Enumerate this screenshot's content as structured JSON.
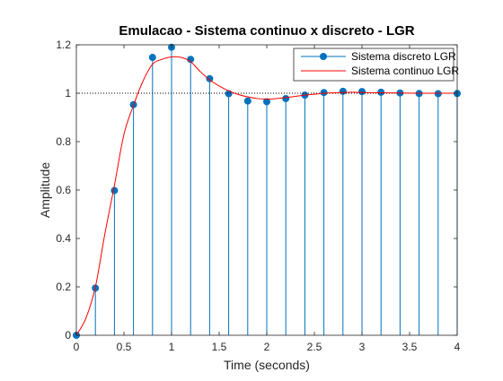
{
  "chart_data": {
    "type": "line",
    "title": "Emulacao - Sistema continuo x discreto - LGR",
    "xlabel": "Time (seconds)",
    "ylabel": "Amplitude",
    "xlim": [
      0,
      4
    ],
    "ylim": [
      0,
      1.2
    ],
    "x_ticks": [
      "0",
      "0.5",
      "1",
      "1.5",
      "2",
      "2.5",
      "3",
      "3.5",
      "4"
    ],
    "y_ticks": [
      "0",
      "0.2",
      "0.4",
      "0.6",
      "0.8",
      "1",
      "1.2"
    ],
    "reference_line": {
      "y": 1,
      "style": "dotted",
      "color": "#000000"
    },
    "legend_position": "top-right",
    "grid": false,
    "series": [
      {
        "name": "Sistema discreto LGR",
        "style": "stem",
        "color": "#0072BD",
        "x": [
          0,
          0.2,
          0.4,
          0.6,
          0.8,
          1.0,
          1.2,
          1.4,
          1.6,
          1.8,
          2.0,
          2.2,
          2.4,
          2.6,
          2.8,
          3.0,
          3.2,
          3.4,
          3.6,
          3.8,
          4.0
        ],
        "values": [
          0,
          0.195,
          0.598,
          0.953,
          1.148,
          1.19,
          1.14,
          1.06,
          0.998,
          0.968,
          0.965,
          0.978,
          0.992,
          1.003,
          1.008,
          1.007,
          1.004,
          1.001,
          0.999,
          0.998,
          0.999
        ]
      },
      {
        "name": "Sistema continuo LGR",
        "style": "line",
        "color": "#FF0000",
        "x": [
          0,
          0.1,
          0.2,
          0.3,
          0.4,
          0.5,
          0.6,
          0.7,
          0.8,
          0.9,
          1.0,
          1.1,
          1.2,
          1.3,
          1.4,
          1.5,
          1.6,
          1.7,
          1.8,
          1.9,
          2.0,
          2.1,
          2.2,
          2.3,
          2.4,
          2.5,
          2.6,
          2.7,
          2.8,
          2.9,
          3.0,
          3.2,
          3.4,
          3.6,
          3.8,
          4.0
        ],
        "values": [
          0,
          0.07,
          0.2,
          0.42,
          0.62,
          0.83,
          0.95,
          1.05,
          1.12,
          1.14,
          1.15,
          1.148,
          1.13,
          1.09,
          1.055,
          1.03,
          1.01,
          0.995,
          0.985,
          0.978,
          0.976,
          0.978,
          0.982,
          0.987,
          0.992,
          0.996,
          1.0,
          1.002,
          1.003,
          1.004,
          1.003,
          1.002,
          1.001,
          1.0,
          1.0,
          1.0
        ]
      }
    ]
  }
}
